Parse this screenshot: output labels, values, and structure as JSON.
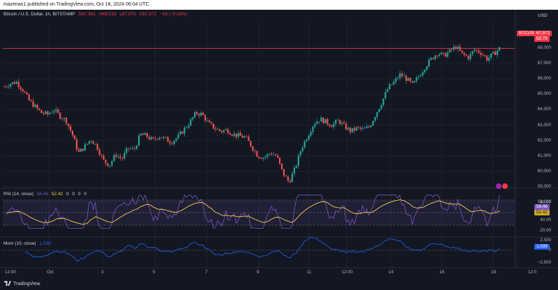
{
  "topbar": {
    "text": "mazenas1 published on TradingView.com, Oct 18, 2024 06:04 UTC"
  },
  "header": {
    "symbol": "Bitcoin / U.S. Dollar, 1h, BITSTAMP",
    "open": "O67,981",
    "high": "H68,016",
    "low": "L67,970",
    "close": "C67,972",
    "change": "−18 (−0.03%)"
  },
  "currency_button": "USD",
  "price_axis": [
    "68,000",
    "67,000",
    "66,000",
    "65,000",
    "64,000",
    "63,000",
    "62,000",
    "61,000",
    "60,000",
    "59,000",
    "58,000"
  ],
  "price_tag": {
    "symbol": "BTCUSD",
    "price": "67,972",
    "countdown": "55:79"
  },
  "rsi": {
    "title": "RSI (14, close)",
    "value1": "58.46",
    "value2": "52.42",
    "extras": [
      "0",
      "0",
      "0",
      "0"
    ],
    "axis": [
      "80.00",
      "40.00",
      "20.00"
    ],
    "tag1": "58.46",
    "tag2": "52.42"
  },
  "mom": {
    "title": "Mom (10, close)",
    "value": "1,039",
    "axis": [
      "2,500",
      "0",
      "−2,500"
    ],
    "tag": "1,039"
  },
  "time_axis": [
    "12:00",
    "Oct",
    "3",
    "5",
    "7",
    "9",
    "11",
    "12:00",
    "14",
    "16",
    "18",
    "12:0"
  ],
  "footer": {
    "brand": "TradingView"
  },
  "colors": {
    "up": "#26a69a",
    "down": "#ef5350",
    "rsi_line": "#7e57c2",
    "rsi_ma": "#f7d14a",
    "mom_line": "#2962ff",
    "price_line": "#f23645"
  },
  "chart_data": {
    "type": "candlestick",
    "title": "Bitcoin / U.S. Dollar, 1h, BITSTAMP",
    "ylim": [
      58000,
      68500
    ],
    "close_path": [
      65500,
      65700,
      65800,
      65300,
      64600,
      64200,
      63800,
      63700,
      64000,
      63600,
      63300,
      62400,
      61200,
      61600,
      62100,
      61600,
      60700,
      60400,
      61100,
      60800,
      61500,
      61400,
      62400,
      62300,
      62000,
      62300,
      62100,
      61900,
      62200,
      62700,
      63200,
      63800,
      63700,
      63100,
      62800,
      62600,
      62700,
      62400,
      62300,
      62200,
      61600,
      61000,
      60900,
      61200,
      61000,
      59900,
      59300,
      60200,
      61500,
      62300,
      63100,
      63400,
      63200,
      63000,
      63300,
      62900,
      62600,
      62800,
      62700,
      62900,
      63700,
      64500,
      65400,
      65800,
      66300,
      66000,
      65600,
      66200,
      66800,
      67300,
      67700,
      67500,
      67800,
      68100,
      67600,
      67400,
      67900,
      67700,
      67300,
      67600,
      67972
    ]
  }
}
